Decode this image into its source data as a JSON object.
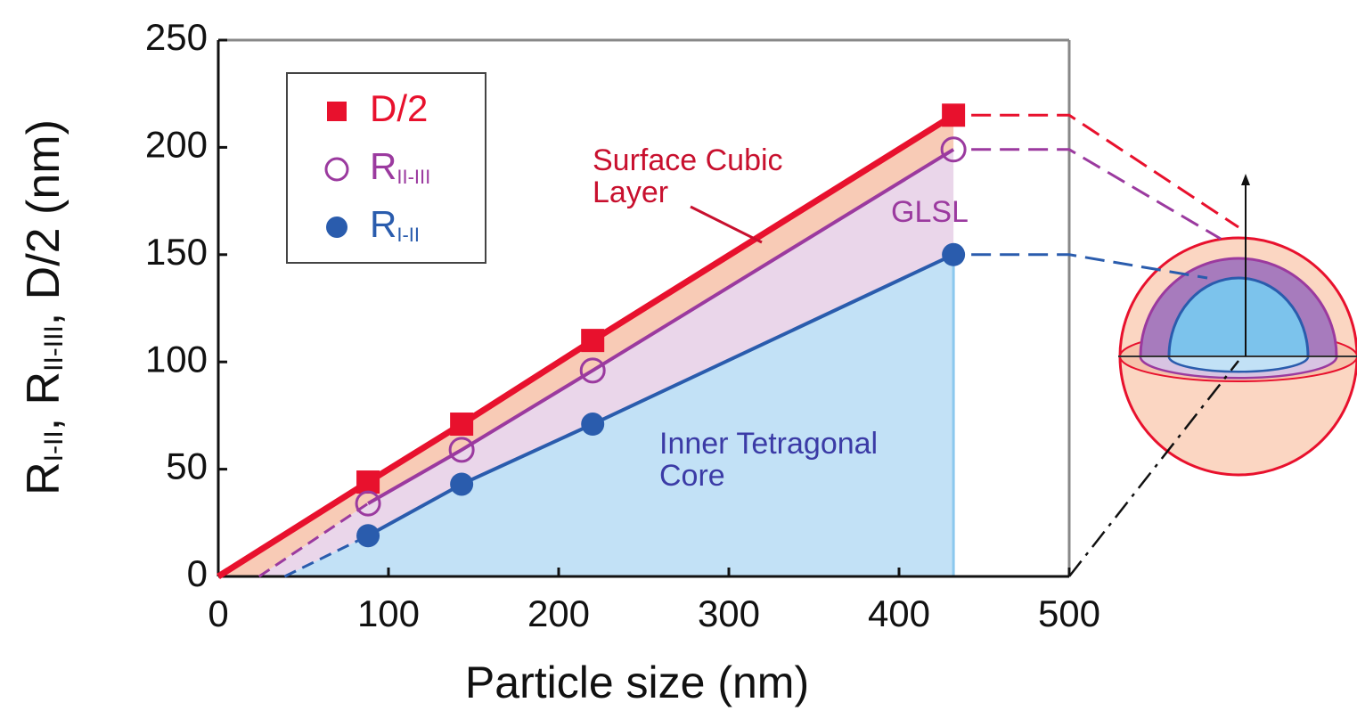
{
  "chart_data": {
    "type": "line",
    "xlabel": "Particle size (nm)",
    "ylabel_parts": [
      {
        "text": "R"
      },
      {
        "text": "I-II",
        "sub": true
      },
      {
        "text": ", R"
      },
      {
        "text": "II-III",
        "sub": true
      },
      {
        "text": ", D/2  (nm)"
      }
    ],
    "x": [
      88,
      143,
      220,
      432
    ],
    "series": [
      {
        "name": "D/2",
        "color": "#e8112d",
        "fill": "#f8cbb6",
        "marker": "square",
        "x_intercept": 0,
        "values": [
          44,
          71,
          110,
          215
        ]
      },
      {
        "name": "R",
        "name_sub": "II-III",
        "color": "#9b3a9f",
        "fill": "#ead6ea",
        "marker": "open-circle",
        "x_intercept": 24,
        "values": [
          34,
          59,
          96,
          199
        ]
      },
      {
        "name": "R",
        "name_sub": "I-II",
        "color": "#2a5cad",
        "fill": "#c2e1f6",
        "marker": "circle",
        "x_intercept": 39,
        "values": [
          19,
          43,
          71,
          150
        ]
      }
    ],
    "annotations": [
      {
        "lines": [
          "Surface Cubic",
          "Layer"
        ],
        "color": "#c8102e"
      },
      {
        "lines": [
          "GLSL"
        ],
        "color": "#9b3a9f"
      },
      {
        "lines": [
          "Inner Tetragonal",
          "Core"
        ],
        "color": "#3b3ba6"
      }
    ],
    "xlim": [
      0,
      500
    ],
    "xticks": [
      0,
      100,
      200,
      300,
      400,
      500
    ],
    "ylim": [
      0,
      250
    ],
    "yticks": [
      0,
      50,
      100,
      150,
      200,
      250
    ]
  }
}
